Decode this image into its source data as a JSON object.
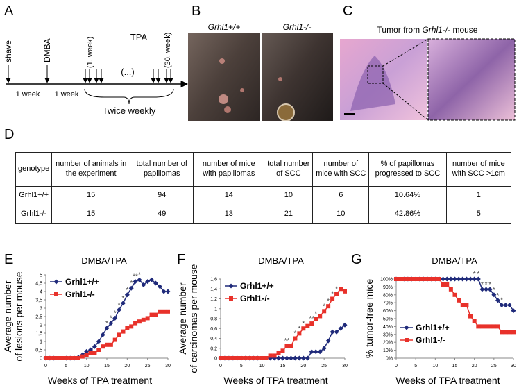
{
  "panel_labels": [
    "A",
    "B",
    "C",
    "D",
    "E",
    "F",
    "G"
  ],
  "timeline": {
    "events": [
      "shave",
      "DMBA"
    ],
    "intervals": [
      "1 week",
      "1 week"
    ],
    "first_week": "(1. week)",
    "last_week": "(30. week)",
    "treatment": "TPA",
    "ellipsis": "(...)",
    "frequency": "Twice weekly"
  },
  "photos": {
    "genotypes": [
      "Grhl1+/+",
      "Grhl1-/-"
    ]
  },
  "histology": {
    "title_prefix": "Tumor from ",
    "title_genotype": "Grhl1-/-",
    "title_suffix": " mouse"
  },
  "table": {
    "header": [
      "genotype",
      "number of animals in the experiment",
      "total number of papillomas",
      "number of mice with papillomas",
      "total number of SCC",
      "number of mice with SCC",
      "% of papillomas progressed to SCC",
      "number of mice with SCC >1cm"
    ],
    "rows": [
      [
        "Grhl1+/+",
        15,
        94,
        14,
        10,
        6,
        "10.64%",
        1
      ],
      [
        "Grhl1-/-",
        15,
        49,
        13,
        21,
        10,
        "42.86%",
        5
      ]
    ]
  },
  "chart_data": [
    {
      "type": "line",
      "title": "DMBA/TPA",
      "x_label": "Weeks of TPA treatment",
      "y_label": [
        "Average number",
        "of lesions per mouse"
      ],
      "x": [
        0,
        1,
        2,
        3,
        4,
        5,
        6,
        7,
        8,
        9,
        10,
        11,
        12,
        13,
        14,
        15,
        16,
        17,
        18,
        19,
        20,
        21,
        22,
        23,
        24,
        25,
        26,
        27,
        28,
        29,
        30
      ],
      "xlim": [
        0,
        30
      ],
      "xticks": [
        0,
        5,
        10,
        15,
        20,
        25,
        30
      ],
      "ylim": [
        0,
        5
      ],
      "yticks": [
        0,
        {
          "value": 0.5,
          "label": "0,5"
        },
        1,
        {
          "value": 1.5,
          "label": "1,5"
        },
        2,
        {
          "value": 2.5,
          "label": "2,5"
        },
        3,
        {
          "value": 3.5,
          "label": "3,5"
        },
        4,
        {
          "value": 4.5,
          "label": "4,5"
        },
        5
      ],
      "legend": "upper left",
      "series": [
        {
          "name": "Grhl1+/+",
          "color": "#1f2a7a",
          "marker": "diamond",
          "values": [
            0,
            0,
            0,
            0,
            0,
            0,
            0,
            0,
            0.05,
            0.2,
            0.4,
            0.5,
            0.7,
            1.0,
            1.4,
            1.8,
            2.1,
            2.4,
            2.9,
            3.3,
            3.8,
            4.2,
            4.6,
            4.7,
            4.4,
            4.6,
            4.7,
            4.5,
            4.3,
            4.0,
            4.0
          ]
        },
        {
          "name": "Grhl1-/-",
          "color": "#e8312a",
          "marker": "square",
          "values": [
            0,
            0,
            0,
            0,
            0,
            0,
            0,
            0,
            0,
            0.1,
            0.2,
            0.3,
            0.3,
            0.5,
            0.7,
            0.8,
            0.8,
            1.1,
            1.4,
            1.6,
            1.8,
            1.9,
            2.1,
            2.2,
            2.3,
            2.4,
            2.6,
            2.6,
            2.8,
            2.8,
            2.8
          ]
        }
      ],
      "annotations": [
        {
          "x": 15,
          "text": "*"
        },
        {
          "x": 16,
          "text": "*"
        },
        {
          "x": 17,
          "text": "*"
        },
        {
          "x": 18,
          "text": "*"
        },
        {
          "x": 19,
          "text": "*"
        },
        {
          "x": 20,
          "text": "*"
        },
        {
          "x": 21,
          "text": "*"
        },
        {
          "x": 22,
          "text": "**"
        },
        {
          "x": 23,
          "text": "*"
        }
      ]
    },
    {
      "type": "line",
      "title": "DMBA/TPA",
      "x_label": "Weeks of TPA treatment",
      "y_label": [
        "Average number",
        "of carcinomas per mouse"
      ],
      "x": [
        0,
        1,
        2,
        3,
        4,
        5,
        6,
        7,
        8,
        9,
        10,
        11,
        12,
        13,
        14,
        15,
        16,
        17,
        18,
        19,
        20,
        21,
        22,
        23,
        24,
        25,
        26,
        27,
        28,
        29,
        30
      ],
      "xlim": [
        0,
        30
      ],
      "xticks": [
        0,
        5,
        10,
        15,
        20,
        25,
        30
      ],
      "ylim": [
        0,
        1.6
      ],
      "yticks": [
        0,
        {
          "value": 0.2,
          "label": "0,2"
        },
        {
          "value": 0.4,
          "label": "0,4"
        },
        {
          "value": 0.6,
          "label": "0,6"
        },
        {
          "value": 0.8,
          "label": "0,8"
        },
        1,
        {
          "value": 1.2,
          "label": "1,2"
        },
        {
          "value": 1.4,
          "label": "1,4"
        },
        {
          "value": 1.6,
          "label": "1,6"
        }
      ],
      "legend": "upper left",
      "series": [
        {
          "name": "Grhl1+/+",
          "color": "#1f2a7a",
          "marker": "diamond",
          "values": [
            0,
            0,
            0,
            0,
            0,
            0,
            0,
            0,
            0,
            0,
            0,
            0,
            0,
            0,
            0,
            0,
            0,
            0,
            0,
            0,
            0,
            0,
            0.13,
            0.13,
            0.13,
            0.2,
            0.35,
            0.53,
            0.53,
            0.6,
            0.67
          ]
        },
        {
          "name": "Grhl1-/-",
          "color": "#e8312a",
          "marker": "square",
          "values": [
            0,
            0,
            0,
            0,
            0,
            0,
            0,
            0,
            0,
            0,
            0,
            0,
            0.05,
            0.05,
            0.1,
            0.15,
            0.25,
            0.25,
            0.4,
            0.5,
            0.6,
            0.65,
            0.7,
            0.8,
            0.85,
            0.95,
            1.05,
            1.2,
            1.3,
            1.4,
            1.35
          ]
        }
      ],
      "annotations": [
        {
          "x": 16,
          "text": "**"
        },
        {
          "x": 18,
          "text": "*"
        },
        {
          "x": 19,
          "text": "*"
        },
        {
          "x": 20,
          "text": "*"
        },
        {
          "x": 22,
          "text": "**"
        },
        {
          "x": 23,
          "text": "*"
        },
        {
          "x": 25,
          "text": "*"
        },
        {
          "x": 26,
          "text": "*"
        },
        {
          "x": 27,
          "text": "*"
        },
        {
          "x": 28,
          "text": "*"
        }
      ]
    },
    {
      "type": "line",
      "title": "DMBA/TPA",
      "x_label": "Weeks of TPA treatment",
      "y_label": [
        "% tumor-free mice"
      ],
      "x": [
        0,
        1,
        2,
        3,
        4,
        5,
        6,
        7,
        8,
        9,
        10,
        11,
        12,
        13,
        14,
        15,
        16,
        17,
        18,
        19,
        20,
        21,
        22,
        23,
        24,
        25,
        26,
        27,
        28,
        29,
        30
      ],
      "xlim": [
        0,
        30
      ],
      "xticks": [
        0,
        5,
        10,
        15,
        20,
        25,
        30
      ],
      "ylim": [
        0,
        100
      ],
      "yticks": [
        {
          "value": 0,
          "label": "0%"
        },
        {
          "value": 10,
          "label": "10%"
        },
        {
          "value": 20,
          "label": "20%"
        },
        {
          "value": 30,
          "label": "30%"
        },
        {
          "value": 40,
          "label": "40%"
        },
        {
          "value": 50,
          "label": "50%"
        },
        {
          "value": 60,
          "label": "60%"
        },
        {
          "value": 70,
          "label": "70%"
        },
        {
          "value": 80,
          "label": "80%"
        },
        {
          "value": 90,
          "label": "90%"
        },
        {
          "value": 100,
          "label": "100%"
        }
      ],
      "legend": "lower left",
      "series": [
        {
          "name": "Grhl1+/+",
          "color": "#1f2a7a",
          "marker": "diamond",
          "values": [
            100,
            100,
            100,
            100,
            100,
            100,
            100,
            100,
            100,
            100,
            100,
            100,
            100,
            100,
            100,
            100,
            100,
            100,
            100,
            100,
            100,
            100,
            87,
            87,
            87,
            80,
            73,
            67,
            67,
            67,
            60
          ]
        },
        {
          "name": "Grhl1-/-",
          "color": "#e8312a",
          "marker": "square",
          "values": [
            100,
            100,
            100,
            100,
            100,
            100,
            100,
            100,
            100,
            100,
            100,
            100,
            93,
            93,
            87,
            80,
            73,
            67,
            67,
            53,
            47,
            40,
            40,
            40,
            40,
            40,
            40,
            33,
            33,
            33,
            33
          ]
        }
      ],
      "annotations": [
        {
          "x": 20,
          "text": "*"
        },
        {
          "x": 21,
          "text": "*"
        },
        {
          "x": 22,
          "text": "*"
        },
        {
          "x": 23,
          "text": "*"
        },
        {
          "x": 24,
          "text": "*"
        },
        {
          "x": 25,
          "text": "*"
        },
        {
          "x": 26,
          "text": "*"
        },
        {
          "x": 27,
          "text": "*"
        }
      ]
    }
  ]
}
